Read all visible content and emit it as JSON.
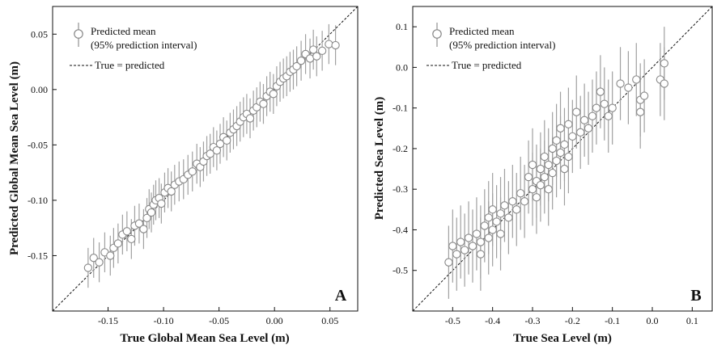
{
  "chart_data": [
    {
      "type": "scatter",
      "panel_label": "A",
      "xlabel": "True Global Mean Sea Level (m)",
      "ylabel": "Predicted Global Mean Sea Level (m)",
      "xlim": [
        -0.2,
        0.075
      ],
      "ylim": [
        -0.2,
        0.075
      ],
      "xticks": [
        -0.15,
        -0.1,
        -0.05,
        0.0,
        0.05
      ],
      "yticks": [
        -0.15,
        -0.1,
        -0.05,
        0.0,
        0.05
      ],
      "xtick_labels": [
        "-0.15",
        "-0.10",
        "-0.05",
        "0.00",
        "0.05"
      ],
      "ytick_labels": [
        "-0.15",
        "-0.10",
        "-0.05",
        "0.00",
        "0.05"
      ],
      "grid": false,
      "legend": {
        "placement": "top-left",
        "entries": [
          "Predicted mean",
          "(95% prediction interval)",
          "True = predicted"
        ]
      },
      "reference_line": {
        "name": "True = predicted",
        "style": "dashed",
        "slope": 1,
        "intercept": 0
      },
      "series": [
        {
          "name": "Predicted mean",
          "color": "#888888",
          "x": [
            -0.168,
            -0.163,
            -0.158,
            -0.153,
            -0.148,
            -0.145,
            -0.141,
            -0.137,
            -0.133,
            -0.129,
            -0.126,
            -0.122,
            -0.118,
            -0.115,
            -0.113,
            -0.111,
            -0.109,
            -0.107,
            -0.104,
            -0.102,
            -0.099,
            -0.096,
            -0.093,
            -0.09,
            -0.086,
            -0.082,
            -0.078,
            -0.074,
            -0.07,
            -0.067,
            -0.064,
            -0.061,
            -0.058,
            -0.055,
            -0.052,
            -0.049,
            -0.046,
            -0.043,
            -0.04,
            -0.037,
            -0.034,
            -0.031,
            -0.028,
            -0.025,
            -0.022,
            -0.019,
            -0.016,
            -0.013,
            -0.01,
            -0.007,
            -0.004,
            -0.001,
            0.002,
            0.005,
            0.008,
            0.011,
            0.014,
            0.017,
            0.02,
            0.024,
            0.028,
            0.032,
            0.035,
            0.038,
            0.043,
            0.049,
            0.055
          ],
          "y": [
            -0.161,
            -0.152,
            -0.156,
            -0.147,
            -0.15,
            -0.143,
            -0.139,
            -0.131,
            -0.128,
            -0.135,
            -0.123,
            -0.121,
            -0.126,
            -0.116,
            -0.108,
            -0.111,
            -0.104,
            -0.1,
            -0.098,
            -0.103,
            -0.093,
            -0.089,
            -0.092,
            -0.086,
            -0.083,
            -0.081,
            -0.077,
            -0.074,
            -0.067,
            -0.07,
            -0.065,
            -0.06,
            -0.058,
            -0.052,
            -0.055,
            -0.049,
            -0.043,
            -0.046,
            -0.039,
            -0.036,
            -0.033,
            -0.029,
            -0.025,
            -0.022,
            -0.026,
            -0.019,
            -0.016,
            -0.011,
            -0.013,
            -0.006,
            -0.002,
            -0.004,
            0.003,
            0.007,
            0.01,
            0.012,
            0.016,
            0.018,
            0.021,
            0.026,
            0.032,
            0.028,
            0.036,
            0.03,
            0.035,
            0.041,
            0.04
          ],
          "interval_halfwidth": 0.018
        }
      ]
    },
    {
      "type": "scatter",
      "panel_label": "B",
      "xlabel": "True Sea Level (m)",
      "ylabel": "Predicted Sea Level (m)",
      "xlim": [
        -0.6,
        0.15
      ],
      "ylim": [
        -0.6,
        0.15
      ],
      "xticks": [
        -0.5,
        -0.4,
        -0.3,
        -0.2,
        -0.1,
        0.0,
        0.1
      ],
      "yticks": [
        -0.5,
        -0.4,
        -0.3,
        -0.2,
        -0.1,
        0.0,
        0.1
      ],
      "xtick_labels": [
        "-0.5",
        "-0.4",
        "-0.3",
        "-0.2",
        "-0.1",
        "0.0",
        "0.1"
      ],
      "ytick_labels": [
        "-0.5",
        "-0.4",
        "-0.3",
        "-0.2",
        "-0.1",
        "0.0",
        "0.1"
      ],
      "grid": false,
      "legend": {
        "placement": "top-left",
        "entries": [
          "Predicted mean",
          "(95% prediction interval)",
          "True = predicted"
        ]
      },
      "reference_line": {
        "name": "True = predicted",
        "style": "dashed",
        "slope": 1,
        "intercept": 0
      },
      "series": [
        {
          "name": "Predicted mean",
          "color": "#888888",
          "x": [
            -0.51,
            -0.5,
            -0.49,
            -0.48,
            -0.47,
            -0.46,
            -0.45,
            -0.44,
            -0.43,
            -0.43,
            -0.42,
            -0.41,
            -0.41,
            -0.4,
            -0.4,
            -0.39,
            -0.38,
            -0.38,
            -0.37,
            -0.36,
            -0.35,
            -0.34,
            -0.33,
            -0.32,
            -0.31,
            -0.3,
            -0.3,
            -0.29,
            -0.29,
            -0.28,
            -0.28,
            -0.27,
            -0.27,
            -0.26,
            -0.26,
            -0.25,
            -0.25,
            -0.24,
            -0.24,
            -0.23,
            -0.23,
            -0.22,
            -0.22,
            -0.21,
            -0.21,
            -0.2,
            -0.19,
            -0.18,
            -0.17,
            -0.16,
            -0.15,
            -0.14,
            -0.13,
            -0.12,
            -0.11,
            -0.1,
            -0.08,
            -0.06,
            -0.04,
            -0.03,
            -0.03,
            -0.02,
            0.02,
            0.03,
            0.03
          ],
          "y": [
            -0.48,
            -0.44,
            -0.46,
            -0.43,
            -0.45,
            -0.42,
            -0.44,
            -0.41,
            -0.43,
            -0.46,
            -0.39,
            -0.42,
            -0.37,
            -0.4,
            -0.35,
            -0.38,
            -0.41,
            -0.36,
            -0.34,
            -0.37,
            -0.33,
            -0.35,
            -0.31,
            -0.33,
            -0.27,
            -0.3,
            -0.24,
            -0.28,
            -0.32,
            -0.25,
            -0.29,
            -0.22,
            -0.27,
            -0.24,
            -0.3,
            -0.2,
            -0.26,
            -0.18,
            -0.23,
            -0.15,
            -0.21,
            -0.19,
            -0.25,
            -0.14,
            -0.22,
            -0.17,
            -0.11,
            -0.16,
            -0.13,
            -0.15,
            -0.12,
            -0.1,
            -0.06,
            -0.09,
            -0.12,
            -0.1,
            -0.04,
            -0.05,
            -0.03,
            -0.08,
            -0.11,
            -0.07,
            -0.03,
            0.01,
            -0.04
          ],
          "interval_halfwidth": 0.09
        }
      ]
    }
  ]
}
